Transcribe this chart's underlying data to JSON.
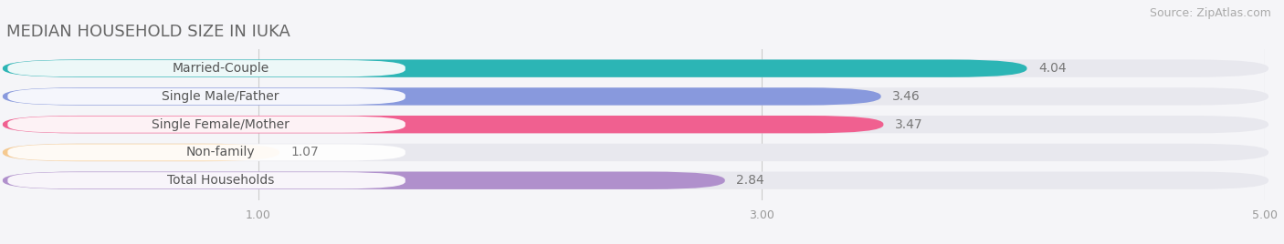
{
  "title": "MEDIAN HOUSEHOLD SIZE IN IUKA",
  "source": "Source: ZipAtlas.com",
  "categories": [
    "Married-Couple",
    "Single Male/Father",
    "Single Female/Mother",
    "Non-family",
    "Total Households"
  ],
  "values": [
    4.04,
    3.46,
    3.47,
    1.07,
    2.84
  ],
  "bar_colors": [
    "#2cb5b5",
    "#8899dd",
    "#f06090",
    "#f5c990",
    "#b090cc"
  ],
  "xlim": [
    0,
    5.0
  ],
  "xticks": [
    1.0,
    3.0,
    5.0
  ],
  "background_color": "#f5f5f8",
  "bar_background_color": "#e8e8ee",
  "title_fontsize": 13,
  "source_fontsize": 9,
  "label_fontsize": 10,
  "value_fontsize": 10
}
